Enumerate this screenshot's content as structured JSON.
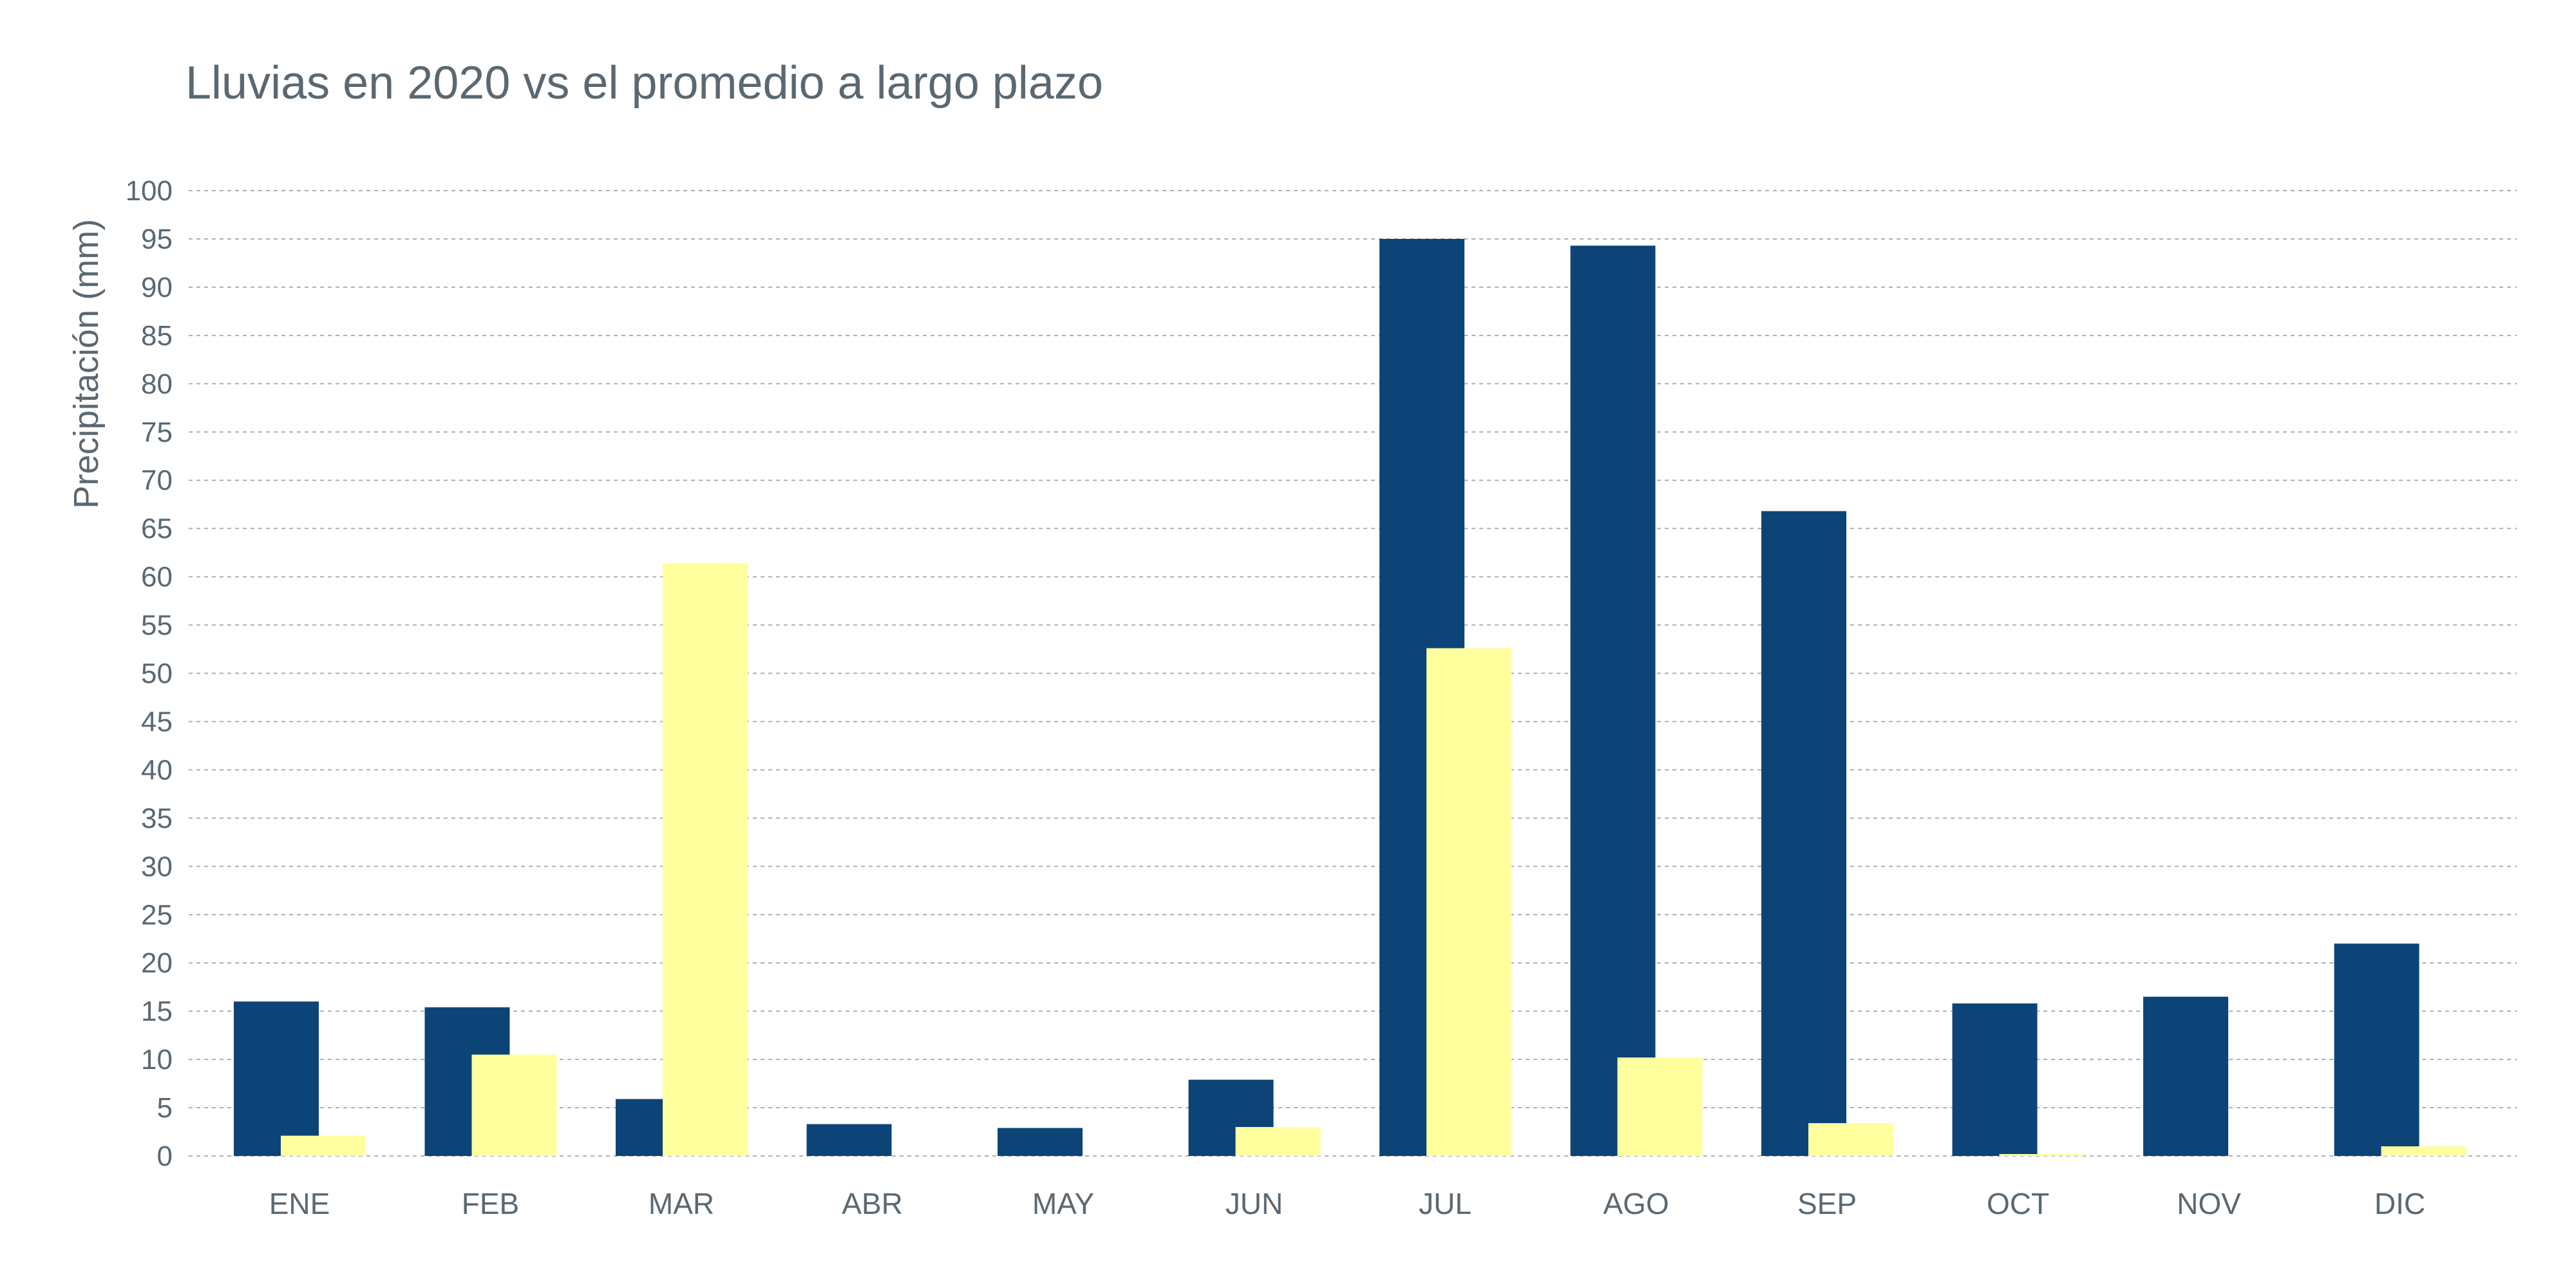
{
  "chart_data": {
    "type": "bar",
    "title": "Lluvias en 2020 vs el promedio a largo plazo",
    "ylabel": "Precipitación (mm)",
    "xlabel": "",
    "ylim": [
      0,
      100
    ],
    "ytick_step": 5,
    "grid": true,
    "categories": [
      "ENE",
      "FEB",
      "MAR",
      "ABR",
      "MAY",
      "JUN",
      "JUL",
      "AGO",
      "SEP",
      "OCT",
      "NOV",
      "DIC"
    ],
    "series": [
      {
        "color": "#0d4477",
        "values": [
          16,
          15.4,
          5.9,
          3.3,
          2.9,
          7.9,
          95,
          94.3,
          66.8,
          15.8,
          16.5,
          22
        ]
      },
      {
        "color": "#ffff9e",
        "values": [
          2.1,
          10.5,
          61.4,
          0,
          0,
          3,
          52.6,
          10.2,
          3.4,
          0.2,
          0,
          1
        ]
      }
    ]
  }
}
